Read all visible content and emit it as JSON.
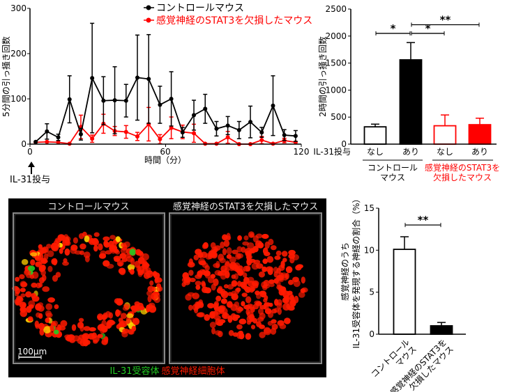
{
  "chart_data": [
    {
      "type": "line",
      "title": "",
      "xlabel": "時間（分）",
      "ylabel": "5分間の引っ掻き回数",
      "xlim": [
        0,
        120
      ],
      "ylim": [
        0,
        300
      ],
      "xticks": [
        "0",
        "60",
        "120"
      ],
      "yticks": [
        "0",
        "100",
        "200",
        "300"
      ],
      "annotation": "IL-31投与",
      "x": [
        2.5,
        7.5,
        12.5,
        17.5,
        22.5,
        27.5,
        32.5,
        37.5,
        42.5,
        47.5,
        52.5,
        57.5,
        62.5,
        67.5,
        72.5,
        77.5,
        82.5,
        87.5,
        92.5,
        97.5,
        102.5,
        107.5,
        112.5,
        117.5
      ],
      "series": [
        {
          "name": "コントロールマウス",
          "color": "#000000",
          "values": [
            5,
            28,
            15,
            99,
            22,
            146,
            96,
            97,
            96,
            147,
            144,
            87,
            100,
            26,
            64,
            78,
            34,
            41,
            31,
            49,
            26,
            85,
            20,
            18
          ],
          "error": [
            0,
            17,
            7,
            52,
            13,
            121,
            53,
            74,
            36,
            94,
            98,
            41,
            60,
            11,
            33,
            32,
            16,
            20,
            19,
            35,
            11,
            66,
            12,
            12
          ]
        },
        {
          "name": "感覚神経のSTAT3を欠損したマウス",
          "color": "#ff0000",
          "values": [
            4,
            5,
            4,
            1,
            38,
            12,
            45,
            29,
            27,
            17,
            44,
            11,
            36,
            27,
            24,
            1,
            1,
            15,
            0,
            0,
            9,
            1,
            8,
            4
          ],
          "error": [
            0,
            0,
            0,
            0,
            26,
            8,
            21,
            10,
            14,
            9,
            37,
            10,
            24,
            15,
            20,
            0,
            0,
            13,
            0,
            0,
            8,
            0,
            5,
            0
          ]
        }
      ]
    },
    {
      "type": "bar",
      "ylabel": "2時間の引っ掻き回数",
      "ylim": [
        0,
        2500
      ],
      "yticks": [
        "0",
        "500",
        "1000",
        "1500",
        "2000",
        "2500"
      ],
      "row_label": "IL-31投与",
      "categories": [
        "なし",
        "あり",
        "なし",
        "あり"
      ],
      "values": [
        320,
        1560,
        340,
        360
      ],
      "error": [
        50,
        320,
        200,
        120
      ],
      "bar_colors": [
        {
          "stroke": "#000000",
          "fill": "#ffffff"
        },
        {
          "stroke": "#000000",
          "fill": "#000000"
        },
        {
          "stroke": "#ff0000",
          "fill": "#ffffff"
        },
        {
          "stroke": "#ff0000",
          "fill": "#ff0000"
        }
      ],
      "groups": [
        {
          "lines": [
            "コントロール",
            "マウス"
          ],
          "color": "#000000"
        },
        {
          "lines": [
            "感覚神経のSTAT3を",
            "欠損したマウス"
          ],
          "color": "#ff0000"
        }
      ],
      "significance": [
        {
          "from": 0,
          "to": 1,
          "level": 2050,
          "label": "*"
        },
        {
          "from": 1,
          "to": 2,
          "level": 2050,
          "label": "*"
        },
        {
          "from": 1,
          "to": 3,
          "level": 2210,
          "label": "**"
        }
      ]
    },
    {
      "type": "bar",
      "ylabel_lines": [
        "感覚神経のうち",
        "IL-31受容体を発現する神経の割合（%）"
      ],
      "ylim": [
        0,
        15
      ],
      "yticks": [
        "0",
        "5",
        "10",
        "15"
      ],
      "categories": [
        [
          "コントロール",
          "マウス"
        ],
        [
          "感覚神経のSTAT3を",
          "欠損したマウス"
        ]
      ],
      "values": [
        10.1,
        1.0
      ],
      "error": [
        1.5,
        0.4
      ],
      "bar_colors": [
        {
          "stroke": "#000000",
          "fill": "#ffffff"
        },
        {
          "stroke": "#000000",
          "fill": "#000000"
        }
      ],
      "significance": [
        {
          "from": 0,
          "to": 1,
          "level": 13,
          "label": "**"
        }
      ]
    }
  ],
  "micrograph": {
    "panel_titles": [
      "コントロールマウス",
      "感覚神経のSTAT3を欠損したマウス"
    ],
    "scale_bar": "100µm",
    "legend_green": "IL-31受容体",
    "legend_red": "感覚神経細胞体",
    "green": "#22cc22",
    "red": "#ff1a00"
  }
}
